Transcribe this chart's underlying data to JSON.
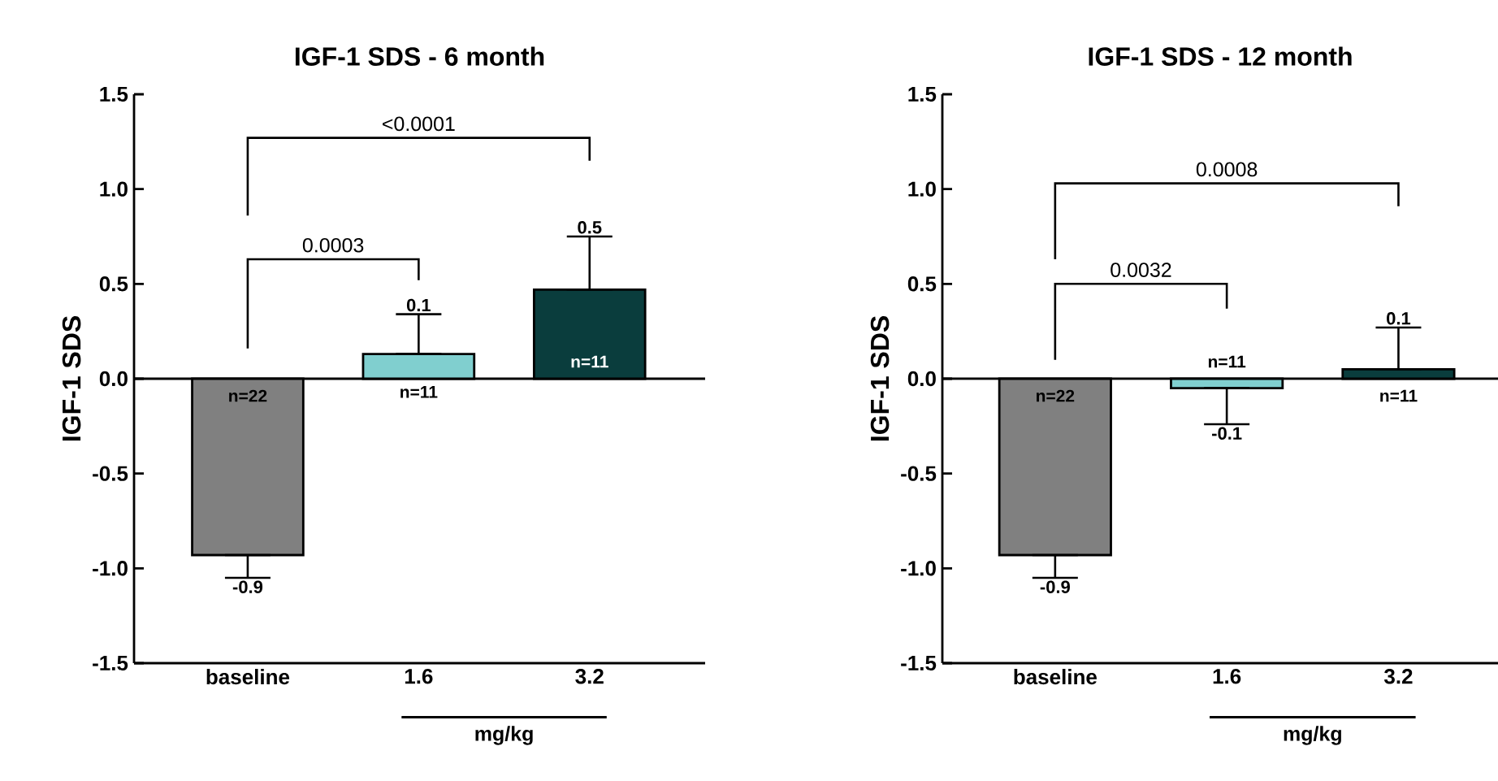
{
  "chart_data": [
    {
      "type": "bar",
      "title": "IGF-1 SDS - 6 month",
      "ylabel": "IGF-1 SDS",
      "xlabel": "mg/kg",
      "categories": [
        "baseline",
        "1.6",
        "3.2"
      ],
      "values": [
        -0.93,
        0.13,
        0.47
      ],
      "colors": [
        "#808080",
        "#80cfcf",
        "#0a3d3d"
      ],
      "errors": [
        [
          -1.05,
          -0.93
        ],
        [
          0.13,
          0.34
        ],
        [
          0.47,
          0.75
        ]
      ],
      "value_labels": [
        "-0.9",
        "0.1",
        "0.5"
      ],
      "ylim": [
        -1.5,
        1.5
      ],
      "yticks": [
        -1.5,
        {
          "value": -1,
          "label": "-1.0"
        },
        -0.5,
        {
          "value": 0,
          "label": "0.0"
        },
        0.5,
        {
          "value": 1,
          "label": "1.0"
        },
        1.5
      ],
      "annotations": [
        "0.0003",
        "<0.0001",
        "n=22",
        "n=11",
        "n=11"
      ]
    },
    {
      "type": "bar",
      "title": "IGF-1 SDS - 12 month",
      "ylabel": "IGF-1 SDS",
      "xlabel": "mg/kg",
      "categories": [
        "baseline",
        "1.6",
        "3.2"
      ],
      "values": [
        -0.93,
        -0.05,
        0.05
      ],
      "colors": [
        "#808080",
        "#80cfcf",
        "#0a3d3d"
      ],
      "errors": [
        [
          -1.05,
          -0.93
        ],
        [
          -0.24,
          -0.05
        ],
        [
          0.05,
          0.27
        ]
      ],
      "value_labels": [
        "-0.9",
        "-0.1",
        "0.1"
      ],
      "ylim": [
        -1.5,
        1.5
      ],
      "yticks": [
        -1.5,
        {
          "value": -1,
          "label": "-1.0"
        },
        -0.5,
        {
          "value": 0,
          "label": "0.0"
        },
        0.5,
        {
          "value": 1,
          "label": "1.0"
        },
        1.5
      ],
      "annotations": [
        "0.0032",
        "0.0008",
        "n=22",
        "n=11",
        "n=11"
      ]
    }
  ]
}
